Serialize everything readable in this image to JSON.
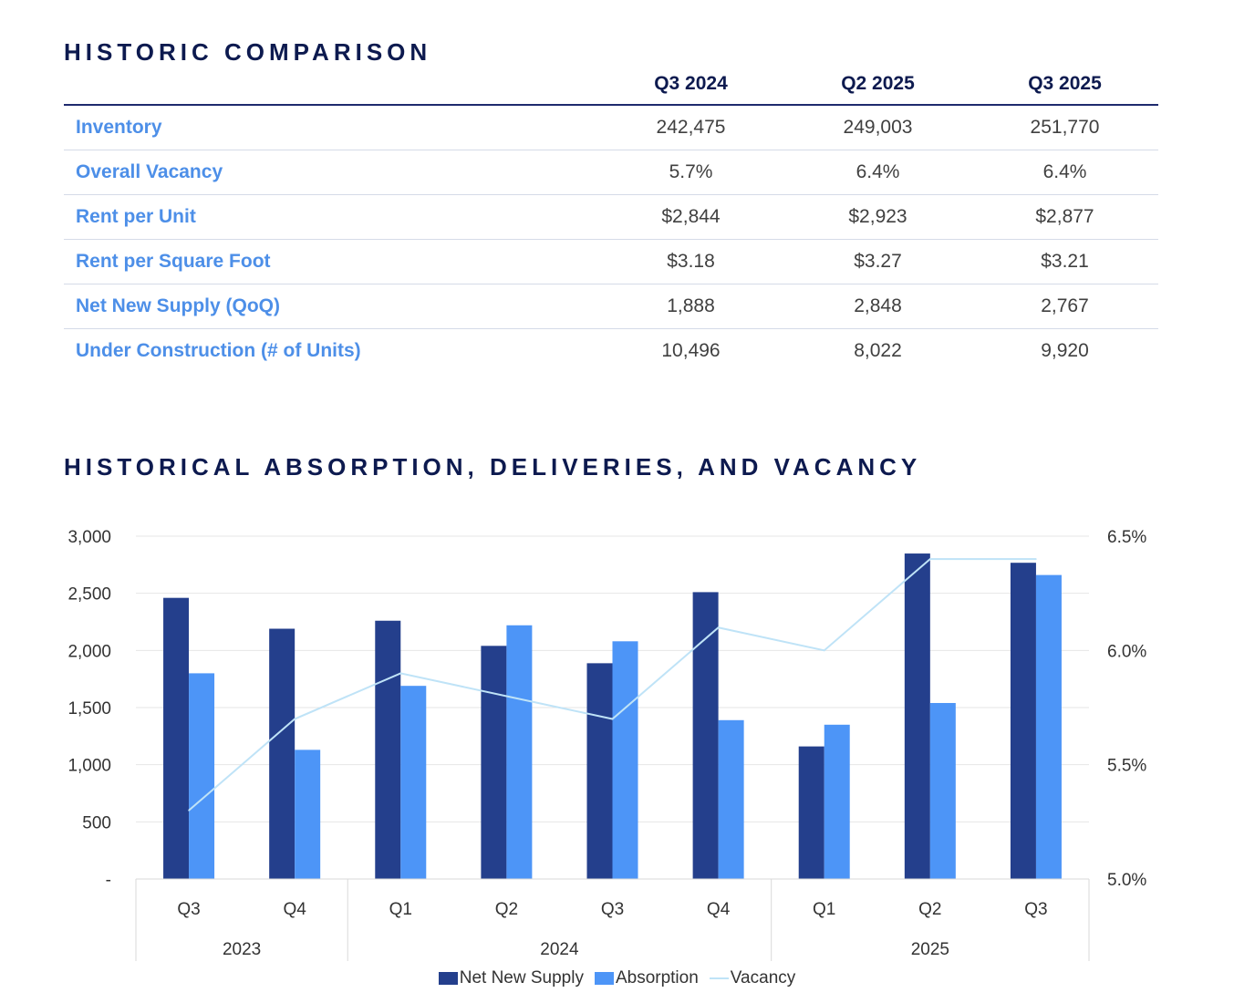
{
  "table": {
    "title": "HISTORIC COMPARISON",
    "columns": [
      "Q3 2024",
      "Q2 2025",
      "Q3 2025"
    ],
    "rows": [
      {
        "label": "Inventory",
        "values": [
          "242,475",
          "249,003",
          "251,770"
        ]
      },
      {
        "label": "Overall Vacancy",
        "values": [
          "5.7%",
          "6.4%",
          "6.4%"
        ]
      },
      {
        "label": "Rent per Unit",
        "values": [
          "$2,844",
          "$2,923",
          "$2,877"
        ]
      },
      {
        "label": "Rent per Square Foot",
        "values": [
          "$3.18",
          "$3.27",
          "$3.21"
        ]
      },
      {
        "label": "Net New Supply (QoQ)",
        "values": [
          "1,888",
          "2,848",
          "2,767"
        ]
      },
      {
        "label": "Under Construction (# of Units)",
        "values": [
          "10,496",
          "8,022",
          "9,920"
        ]
      }
    ]
  },
  "chart_data": {
    "type": "bar",
    "title": "HISTORICAL ABSORPTION, DELIVERIES, AND VACANCY",
    "categories": [
      "Q3",
      "Q4",
      "Q1",
      "Q2",
      "Q3",
      "Q4",
      "Q1",
      "Q2",
      "Q3"
    ],
    "year_groups": [
      {
        "label": "2023",
        "count": 2
      },
      {
        "label": "2024",
        "count": 4
      },
      {
        "label": "2025",
        "count": 3
      }
    ],
    "series": [
      {
        "name": "Net New Supply",
        "kind": "bar",
        "axis": "left",
        "color": "#243f8c",
        "values": [
          2460,
          2190,
          2260,
          2040,
          1888,
          2510,
          1160,
          2848,
          2767
        ]
      },
      {
        "name": "Absorption",
        "kind": "bar",
        "axis": "left",
        "color": "#4d95f7",
        "values": [
          1800,
          1130,
          1690,
          2220,
          2080,
          1390,
          1350,
          1540,
          2660
        ]
      },
      {
        "name": "Vacancy",
        "kind": "line",
        "axis": "right",
        "color": "#bfe3f7",
        "values": [
          5.3,
          5.7,
          5.9,
          5.8,
          5.7,
          6.1,
          6.0,
          6.4,
          6.4
        ]
      }
    ],
    "y_left": {
      "min": 0,
      "max": 3000,
      "ticks": [
        0,
        500,
        1000,
        1500,
        2000,
        2500,
        3000
      ],
      "tick_labels": [
        "-",
        "500",
        "1,000",
        "1,500",
        "2,000",
        "2,500",
        "3,000"
      ]
    },
    "y_right": {
      "min": 5.0,
      "max": 6.5,
      "ticks": [
        5.0,
        5.5,
        6.0,
        6.5
      ],
      "tick_labels": [
        "5.0%",
        "5.5%",
        "6.0%",
        "6.5%"
      ]
    },
    "grid": true,
    "legend": "bottom-center"
  }
}
